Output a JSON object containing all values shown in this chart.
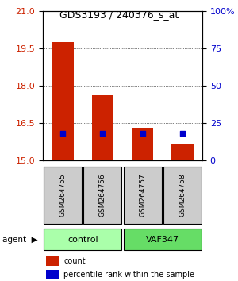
{
  "title": "GDS3193 / 240376_s_at",
  "samples": [
    "GSM264755",
    "GSM264756",
    "GSM264757",
    "GSM264758"
  ],
  "bar_values": [
    19.75,
    17.6,
    16.3,
    15.65
  ],
  "bar_color": "#cc2200",
  "dot_values": [
    18.1,
    18.2,
    18.15,
    18.15
  ],
  "dot_color": "#0000cc",
  "ylim_left": [
    15,
    21
  ],
  "ylim_right": [
    0,
    100
  ],
  "yticks_left": [
    15,
    16.5,
    18,
    19.5,
    21
  ],
  "yticks_right": [
    0,
    25,
    50,
    75,
    100
  ],
  "ytick_labels_right": [
    "0",
    "25",
    "50",
    "75",
    "100%"
  ],
  "groups": [
    {
      "label": "control",
      "cols": [
        0,
        1
      ],
      "color": "#aaffaa"
    },
    {
      "label": "VAF347",
      "cols": [
        2,
        3
      ],
      "color": "#66dd66"
    }
  ],
  "group_label": "agent",
  "bar_width": 0.55,
  "bg_color": "#ffffff",
  "plot_bg": "#ffffff",
  "grid_color": "#000000",
  "sample_box_color": "#cccccc",
  "legend_count_color": "#cc2200",
  "legend_pct_color": "#0000cc"
}
